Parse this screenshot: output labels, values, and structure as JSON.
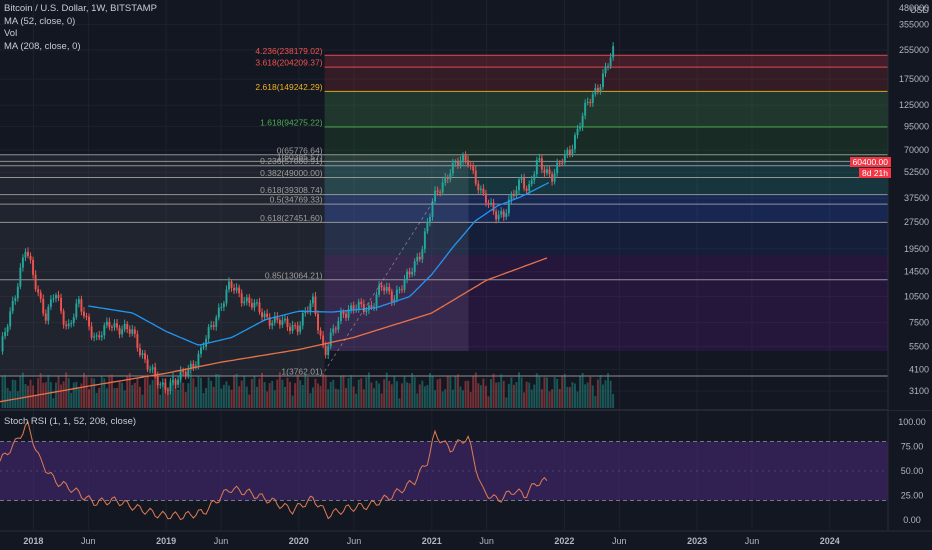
{
  "legend": {
    "symbol": "Bitcoin / U.S. Dollar, 1W, BITSTAMP",
    "ma52": "MA (52, close, 0)",
    "vol": "Vol",
    "ma208": "MA (208, close, 0)"
  },
  "rsi_legend": "Stoch RSI (1, 1, 52, 208, close)",
  "price_badges": [
    "60400.00",
    "8d 21h"
  ],
  "colors": {
    "up": "#26a69a",
    "down": "#ef5350",
    "ma52": "#2196f3",
    "ma208": "#e8724a",
    "rsi": "#e07b53",
    "rsi_band": "#4a2a7a"
  },
  "chart_data": [
    {
      "type": "line",
      "title": "Bitcoin / U.S. Dollar, 1W, BITSTAMP",
      "y_scale": "log",
      "y_unit": "USD",
      "y_ticks": [
        480000,
        355000,
        255000,
        175000,
        125000,
        95000,
        70000,
        52500,
        37500,
        27500,
        19500,
        14500,
        10500,
        7500,
        5500,
        4100,
        3100
      ],
      "y_tick_labels": [
        "480000",
        "355000",
        "255000",
        "175000",
        "125000",
        "95000",
        "70000",
        "52500",
        "37500",
        "27500",
        "19500",
        "14500",
        "10500",
        "7500",
        "5500",
        "4100",
        "3100"
      ],
      "x_tick_labels": [
        "2018",
        "Jun",
        "2019",
        "Jun",
        "2020",
        "Jun",
        "2021",
        "Jun",
        "2022",
        "Jun",
        "2023",
        "Jun",
        "2024"
      ],
      "x_tick_dates": [
        "2018-01-01",
        "2018-06-01",
        "2019-01-01",
        "2019-06-01",
        "2020-01-01",
        "2020-06-01",
        "2021-01-01",
        "2021-06-01",
        "2022-01-01",
        "2022-06-01",
        "2023-01-01",
        "2023-06-01",
        "2024-01-01"
      ],
      "series": [
        {
          "kind": "price",
          "x": [
            "2017-10-01",
            "2017-12-10",
            "2018-02-05",
            "2018-03-01",
            "2018-04-05",
            "2018-05-05",
            "2018-06-25",
            "2018-08-01",
            "2018-10-01",
            "2018-11-20",
            "2018-12-15",
            "2019-02-01",
            "2019-04-05",
            "2019-05-15",
            "2019-06-25",
            "2019-08-01",
            "2019-09-25",
            "2019-11-20",
            "2020-01-01",
            "2020-02-10",
            "2020-03-12",
            "2020-05-01",
            "2020-07-15",
            "2020-08-15",
            "2020-09-15",
            "2020-11-01",
            "2020-12-01",
            "2021-01-05",
            "2021-02-20",
            "2021-04-12",
            "2021-05-19",
            "2021-06-22",
            "2021-07-20",
            "2021-09-07",
            "2021-09-22",
            "2021-10-20",
            "2021-11-30",
            "2022-01-15",
            "2022-03-01",
            "2022-04-15",
            "2022-05-15"
          ],
          "y": [
            5000,
            19200,
            8000,
            11000,
            7000,
            9500,
            6000,
            7500,
            6500,
            4000,
            3300,
            3500,
            5000,
            8000,
            12000,
            10500,
            8300,
            7300,
            7200,
            10000,
            5000,
            8800,
            9200,
            11800,
            10500,
            13800,
            19000,
            36000,
            55000,
            63000,
            38000,
            32000,
            30000,
            51000,
            40000,
            60000,
            50000,
            70000,
            120000,
            180000,
            245000
          ]
        },
        {
          "kind": "ma",
          "name": "MA (52, close, 0)",
          "x": [
            "2018-06-01",
            "2018-10-01",
            "2019-01-01",
            "2019-04-01",
            "2019-07-01",
            "2019-10-01",
            "2020-01-01",
            "2020-04-01",
            "2020-08-01",
            "2020-11-01",
            "2021-01-01",
            "2021-03-01",
            "2021-05-01",
            "2021-07-01",
            "2021-09-01",
            "2021-11-20"
          ],
          "y": [
            9300,
            8500,
            6700,
            5600,
            6200,
            7800,
            8700,
            8600,
            9100,
            10500,
            14000,
            20000,
            28000,
            34000,
            38000,
            46000
          ]
        },
        {
          "kind": "ma",
          "name": "MA (208, close, 0)",
          "x": [
            "2017-10-01",
            "2018-06-01",
            "2019-01-01",
            "2019-06-01",
            "2020-01-01",
            "2020-06-01",
            "2021-01-01",
            "2021-06-01",
            "2021-11-20"
          ],
          "y": [
            2700,
            3300,
            3900,
            4500,
            5300,
            6200,
            8500,
            13000,
            17500
          ]
        }
      ],
      "fib_levels": [
        {
          "label": "4.236(238179.02)",
          "value": 238179.02,
          "color": "#ef5350"
        },
        {
          "label": "3.618(204209.37)",
          "value": 204209.37,
          "color": "#ef5350"
        },
        {
          "label": "2.618(149242.29)",
          "value": 149242.29,
          "color": "#f2b21c"
        },
        {
          "label": "1.618(94275.22)",
          "value": 94275.22,
          "color": "#4caf50"
        },
        {
          "label": "1(60385.57)",
          "value": 60385.57,
          "color": "#9e9e9e"
        },
        {
          "label": "0(65776.64)",
          "value": 65776.64,
          "color": "#9e9e9e"
        },
        {
          "label": "0.236(57080.91)",
          "value": 57080.91,
          "color": "#9e9e9e"
        },
        {
          "label": "0.382(49000.00)",
          "value": 49000,
          "color": "#9e9e9e"
        },
        {
          "label": "0.618(39308.74)",
          "value": 39308.74,
          "color": "#9e9e9e"
        },
        {
          "label": "0.5(34769.33)",
          "value": 34769.33,
          "color": "#9e9e9e"
        },
        {
          "label": "0.618(27451.60)",
          "value": 27451.6,
          "color": "#9e9e9e"
        },
        {
          "label": "0.85(13064.21)",
          "value": 13064.21,
          "color": "#9e9e9e"
        },
        {
          "label": "1(3762.01)",
          "value": 3762.01,
          "color": "#9e9e9e"
        }
      ],
      "fib_range_2020_zone": {
        "from": 3762.01,
        "to": 65776.64
      },
      "fib_extension_bands": [
        {
          "from": 204209.37,
          "to": 238179.02,
          "color": "#f23645"
        },
        {
          "from": 149242.29,
          "to": 204209.37,
          "color": "#a83232"
        },
        {
          "from": 94275.22,
          "to": 149242.29,
          "color": "#4caf50"
        },
        {
          "from": 60385.57,
          "to": 94275.22,
          "color": "#2e7d32"
        },
        {
          "from": 39308.74,
          "to": 60385.57,
          "color": "#26a69a"
        },
        {
          "from": 27451.6,
          "to": 39308.74,
          "color": "#2962ff"
        },
        {
          "from": 18000,
          "to": 27451.6,
          "color": "#1e3a8a"
        },
        {
          "from": 5200,
          "to": 18000,
          "color": "#6a1b9a"
        }
      ]
    },
    {
      "type": "line",
      "title": "Stoch RSI (1, 1, 52, 208, close)",
      "y_ticks": [
        0,
        25,
        50,
        75,
        100
      ],
      "y_tick_labels": [
        "0.00",
        "25.00",
        "50.00",
        "75.00",
        "100.00"
      ],
      "band": [
        20,
        80
      ],
      "series": [
        {
          "name": "Stoch RSI",
          "x": [
            "2017-10-01",
            "2017-11-15",
            "2017-12-15",
            "2018-01-20",
            "2018-03-01",
            "2018-04-15",
            "2018-06-15",
            "2018-08-15",
            "2018-10-15",
            "2018-12-15",
            "2019-02-15",
            "2019-04-15",
            "2019-06-25",
            "2019-08-15",
            "2019-10-15",
            "2019-12-15",
            "2020-02-10",
            "2020-03-20",
            "2020-05-15",
            "2020-07-15",
            "2020-09-15",
            "2020-11-15",
            "2020-12-20",
            "2021-01-10",
            "2021-02-20",
            "2021-04-10",
            "2021-05-20",
            "2021-07-01",
            "2021-08-15",
            "2021-09-15",
            "2021-10-15",
            "2021-11-20"
          ],
          "y": [
            60,
            80,
            98,
            60,
            40,
            32,
            18,
            20,
            12,
            5,
            4,
            8,
            32,
            28,
            20,
            10,
            22,
            5,
            12,
            15,
            25,
            40,
            60,
            88,
            72,
            85,
            30,
            20,
            30,
            25,
            38,
            40
          ]
        }
      ]
    }
  ]
}
